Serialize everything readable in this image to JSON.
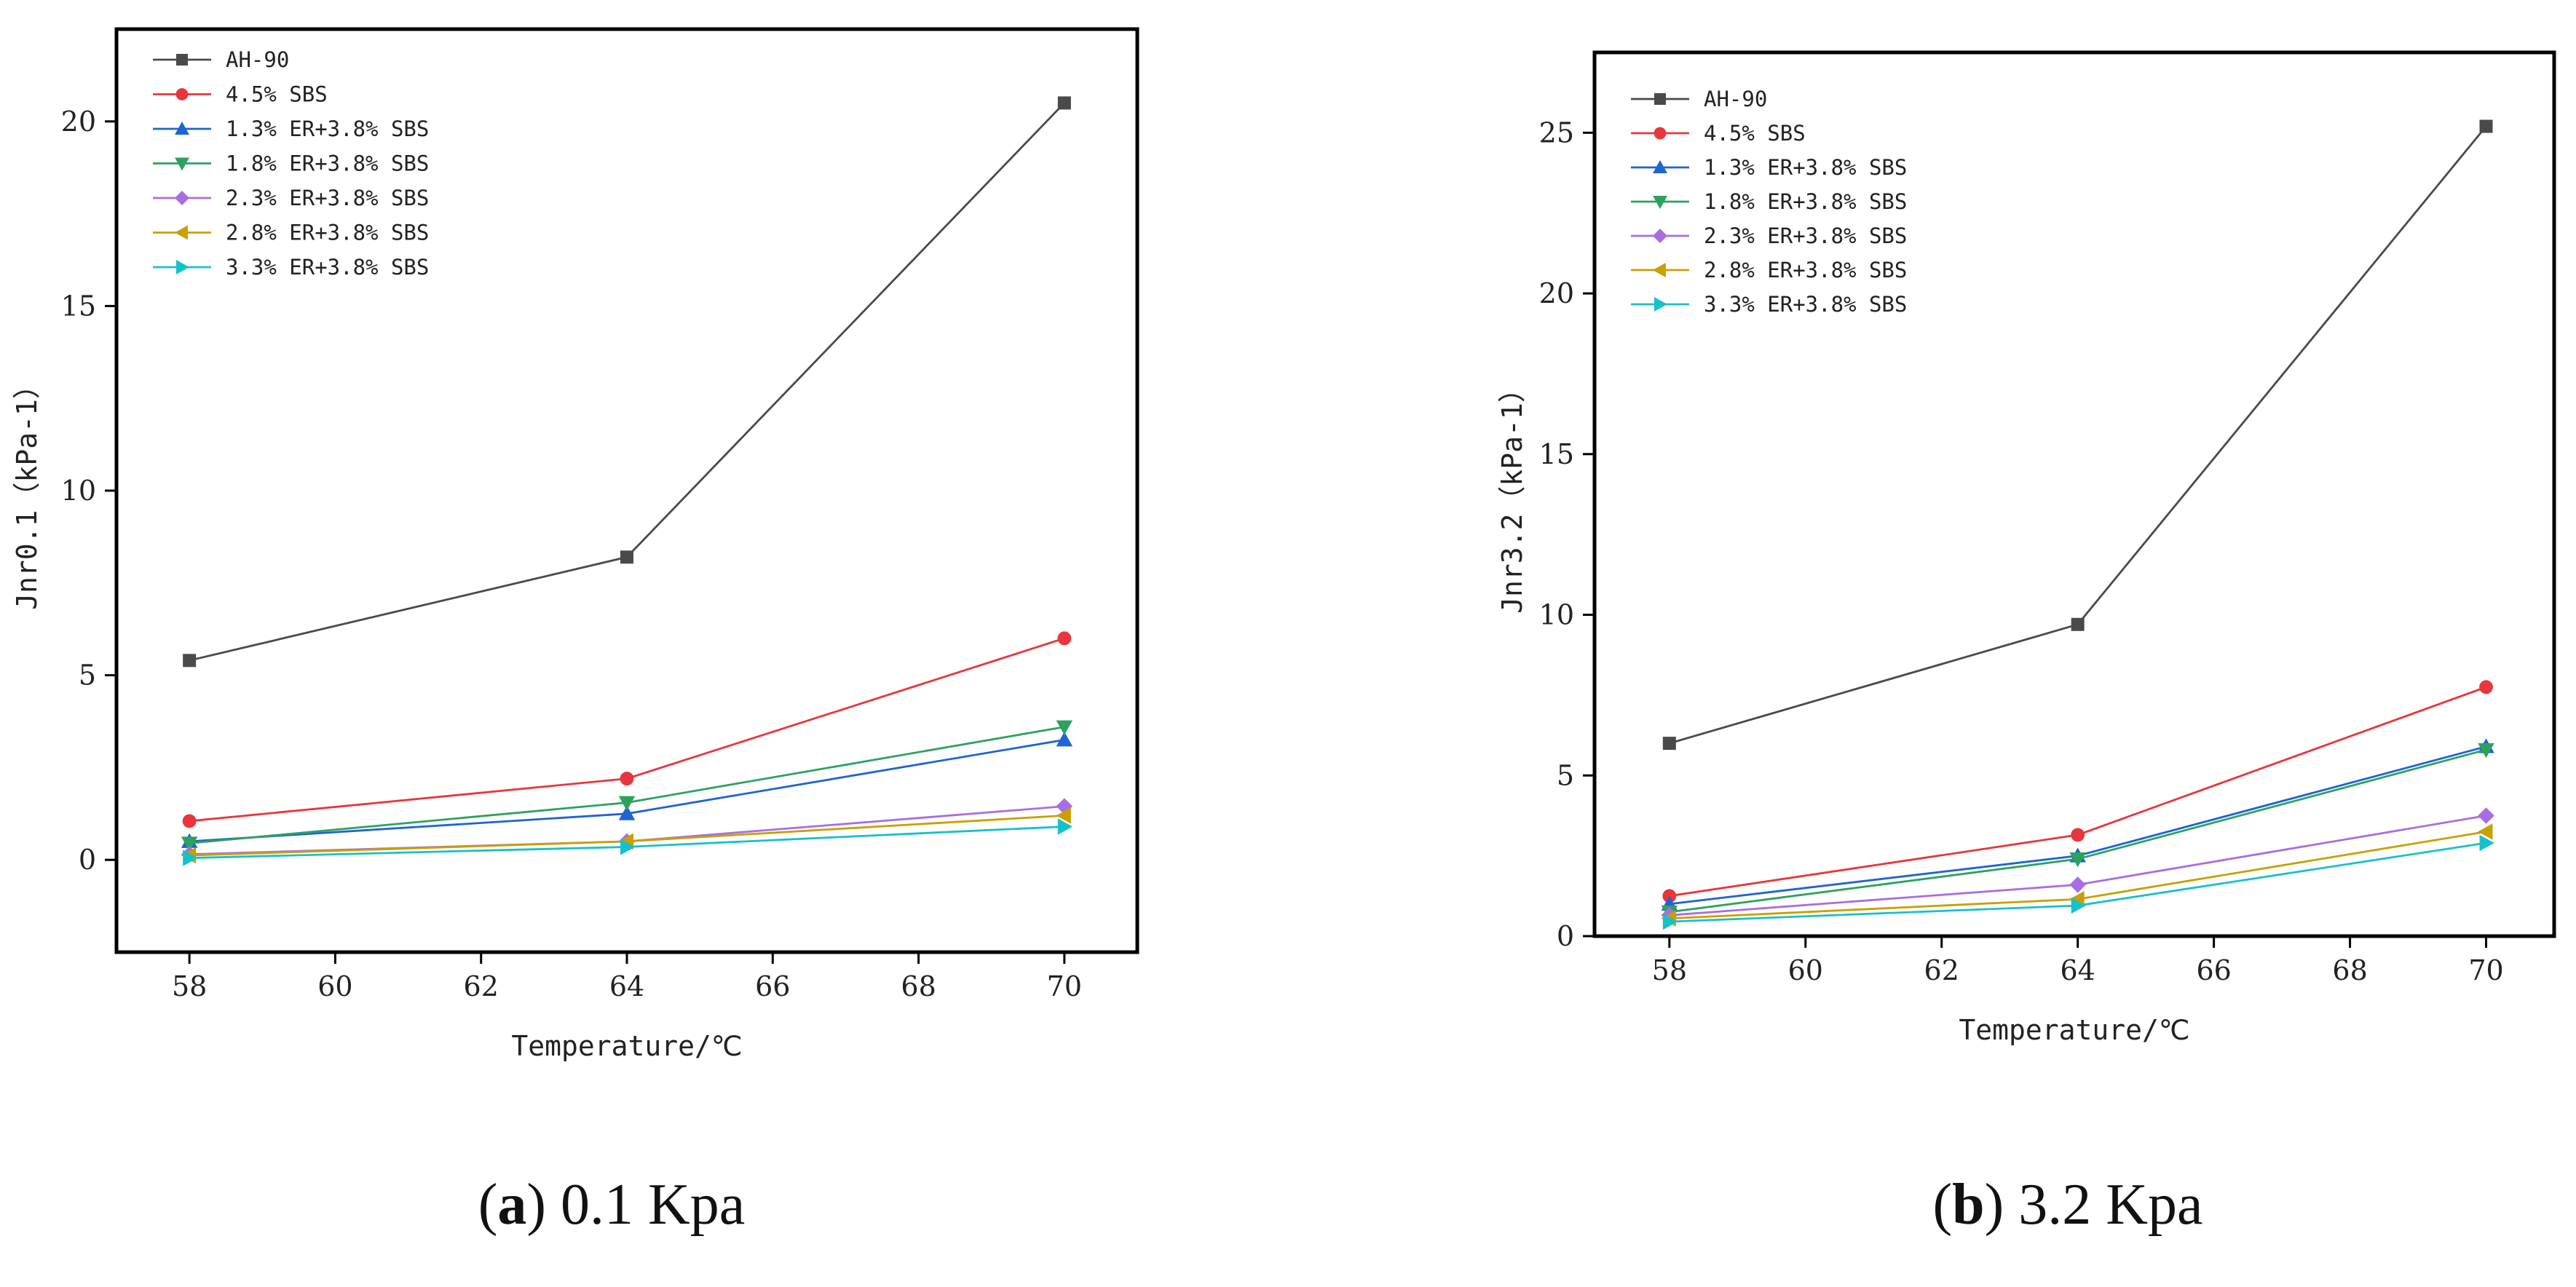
{
  "chart_data": [
    {
      "type": "line",
      "caption_letter": "a",
      "caption_text": "0.1 Kpa",
      "xlabel": "Temperature/℃",
      "ylabel": "Jnr0.1（kPa-1）",
      "xlim": [
        57,
        71
      ],
      "ylim": [
        -2.5,
        22.5
      ],
      "xticks": [
        58,
        60,
        62,
        64,
        66,
        68,
        70
      ],
      "yticks": [
        0,
        5,
        10,
        15,
        20
      ],
      "x": [
        58,
        64,
        70
      ],
      "series": [
        {
          "name": "AH-90",
          "color": "#4a4a4a",
          "marker": "square",
          "values": [
            5.4,
            8.2,
            20.5
          ]
        },
        {
          "name": "4.5% SBS",
          "color": "#e8363c",
          "marker": "circle",
          "values": [
            1.05,
            2.2,
            6.0
          ]
        },
        {
          "name": "1.3% ER+3.8% SBS",
          "color": "#1e64d2",
          "marker": "triangle-up",
          "values": [
            0.5,
            1.25,
            3.25
          ]
        },
        {
          "name": "1.8% ER+3.8% SBS",
          "color": "#2ca25f",
          "marker": "triangle-down",
          "values": [
            0.45,
            1.55,
            3.6
          ]
        },
        {
          "name": "2.3% ER+3.8% SBS",
          "color": "#a86ee0",
          "marker": "diamond",
          "values": [
            0.15,
            0.5,
            1.45
          ]
        },
        {
          "name": "2.8% ER+3.8% SBS",
          "color": "#c8a000",
          "marker": "triangle-left",
          "values": [
            0.12,
            0.5,
            1.2
          ]
        },
        {
          "name": "3.3% ER+3.8% SBS",
          "color": "#17c1cc",
          "marker": "triangle-right",
          "values": [
            0.05,
            0.35,
            0.9
          ]
        }
      ]
    },
    {
      "type": "line",
      "caption_letter": "b",
      "caption_text": "3.2 Kpa",
      "xlabel": "Temperature/℃",
      "ylabel": "Jnr3.2（kPa-1）",
      "xlim": [
        56.9,
        71
      ],
      "ylim": [
        0,
        27.5
      ],
      "xticks": [
        58,
        60,
        62,
        64,
        66,
        68,
        70
      ],
      "yticks": [
        0,
        5,
        10,
        15,
        20,
        25
      ],
      "x": [
        58,
        64,
        70
      ],
      "series": [
        {
          "name": "AH-90",
          "color": "#4a4a4a",
          "marker": "square",
          "values": [
            6.0,
            9.7,
            25.2
          ]
        },
        {
          "name": "4.5% SBS",
          "color": "#e8363c",
          "marker": "circle",
          "values": [
            1.25,
            3.15,
            7.75
          ]
        },
        {
          "name": "1.3% ER+3.8% SBS",
          "color": "#1e64d2",
          "marker": "triangle-up",
          "values": [
            1.0,
            2.5,
            5.9
          ]
        },
        {
          "name": "1.8% ER+3.8% SBS",
          "color": "#2ca25f",
          "marker": "triangle-down",
          "values": [
            0.75,
            2.4,
            5.8
          ]
        },
        {
          "name": "2.3% ER+3.8% SBS",
          "color": "#a86ee0",
          "marker": "diamond",
          "values": [
            0.65,
            1.6,
            3.75
          ]
        },
        {
          "name": "2.8% ER+3.8% SBS",
          "color": "#c8a000",
          "marker": "triangle-left",
          "values": [
            0.55,
            1.15,
            3.25
          ]
        },
        {
          "name": "3.3% ER+3.8% SBS",
          "color": "#17c1cc",
          "marker": "triangle-right",
          "values": [
            0.45,
            0.95,
            2.9
          ]
        }
      ]
    }
  ]
}
